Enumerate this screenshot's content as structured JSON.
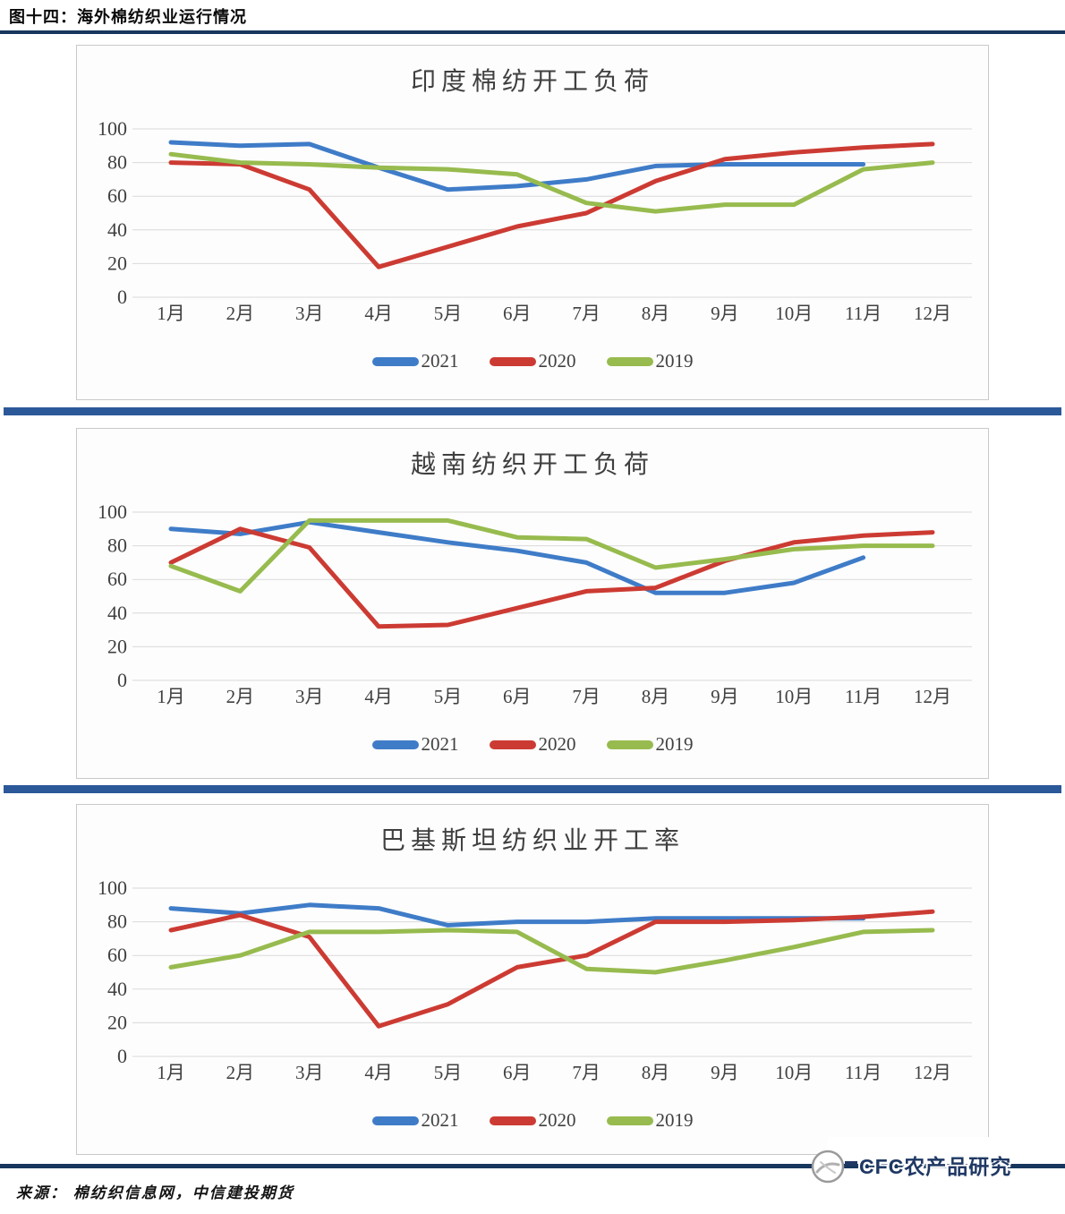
{
  "header": {
    "title": "图十四：海外棉纺织业运行情况"
  },
  "footer": {
    "source": "来源：  棉纺织信息网，中信建投期货"
  },
  "watermark": {
    "text": "CFC农产品研究"
  },
  "colors": {
    "blue": "#3f7cc8",
    "red": "#cc3b33",
    "green": "#97bb4e",
    "navy": "#17365d",
    "separator": "#2b5899",
    "grid": "#d9d9d9",
    "axis_text": "#404040"
  },
  "chart_data": [
    {
      "type": "line",
      "title": "印度棉纺开工负荷",
      "categories": [
        "1月",
        "2月",
        "3月",
        "4月",
        "5月",
        "6月",
        "7月",
        "8月",
        "9月",
        "10月",
        "11月",
        "12月"
      ],
      "ylim": [
        0,
        100
      ],
      "yticks": [
        0,
        20,
        40,
        60,
        80,
        100
      ],
      "grid": true,
      "legend_position": "bottom",
      "series": [
        {
          "name": "2021",
          "color_key": "blue",
          "values": [
            92,
            90,
            91,
            77,
            64,
            66,
            70,
            78,
            79,
            79,
            79,
            null
          ]
        },
        {
          "name": "2020",
          "color_key": "red",
          "values": [
            80,
            79,
            64,
            18,
            30,
            42,
            50,
            69,
            82,
            86,
            89,
            91
          ]
        },
        {
          "name": "2019",
          "color_key": "green",
          "values": [
            85,
            80,
            79,
            77,
            76,
            73,
            56,
            51,
            55,
            55,
            76,
            80
          ]
        }
      ]
    },
    {
      "type": "line",
      "title": "越南纺织开工负荷",
      "categories": [
        "1月",
        "2月",
        "3月",
        "4月",
        "5月",
        "6月",
        "7月",
        "8月",
        "9月",
        "10月",
        "11月",
        "12月"
      ],
      "ylim": [
        0,
        100
      ],
      "yticks": [
        0,
        20,
        40,
        60,
        80,
        100
      ],
      "grid": true,
      "legend_position": "bottom",
      "series": [
        {
          "name": "2021",
          "color_key": "blue",
          "values": [
            90,
            87,
            94,
            88,
            82,
            77,
            70,
            52,
            52,
            58,
            73,
            null
          ]
        },
        {
          "name": "2020",
          "color_key": "red",
          "values": [
            70,
            90,
            79,
            32,
            33,
            43,
            53,
            55,
            71,
            82,
            86,
            88
          ]
        },
        {
          "name": "2019",
          "color_key": "green",
          "values": [
            68,
            53,
            95,
            95,
            95,
            85,
            84,
            67,
            72,
            78,
            80,
            80
          ]
        }
      ]
    },
    {
      "type": "line",
      "title": "巴基斯坦纺织业开工率",
      "categories": [
        "1月",
        "2月",
        "3月",
        "4月",
        "5月",
        "6月",
        "7月",
        "8月",
        "9月",
        "10月",
        "11月",
        "12月"
      ],
      "ylim": [
        0,
        100
      ],
      "yticks": [
        0,
        20,
        40,
        60,
        80,
        100
      ],
      "grid": true,
      "legend_position": "bottom",
      "series": [
        {
          "name": "2021",
          "color_key": "blue",
          "values": [
            88,
            85,
            90,
            88,
            78,
            80,
            80,
            82,
            82,
            82,
            82,
            null
          ]
        },
        {
          "name": "2020",
          "color_key": "red",
          "values": [
            75,
            84,
            71,
            18,
            31,
            53,
            60,
            80,
            80,
            81,
            83,
            86
          ]
        },
        {
          "name": "2019",
          "color_key": "green",
          "values": [
            53,
            60,
            74,
            74,
            75,
            74,
            52,
            50,
            57,
            65,
            74,
            75
          ]
        }
      ]
    }
  ]
}
